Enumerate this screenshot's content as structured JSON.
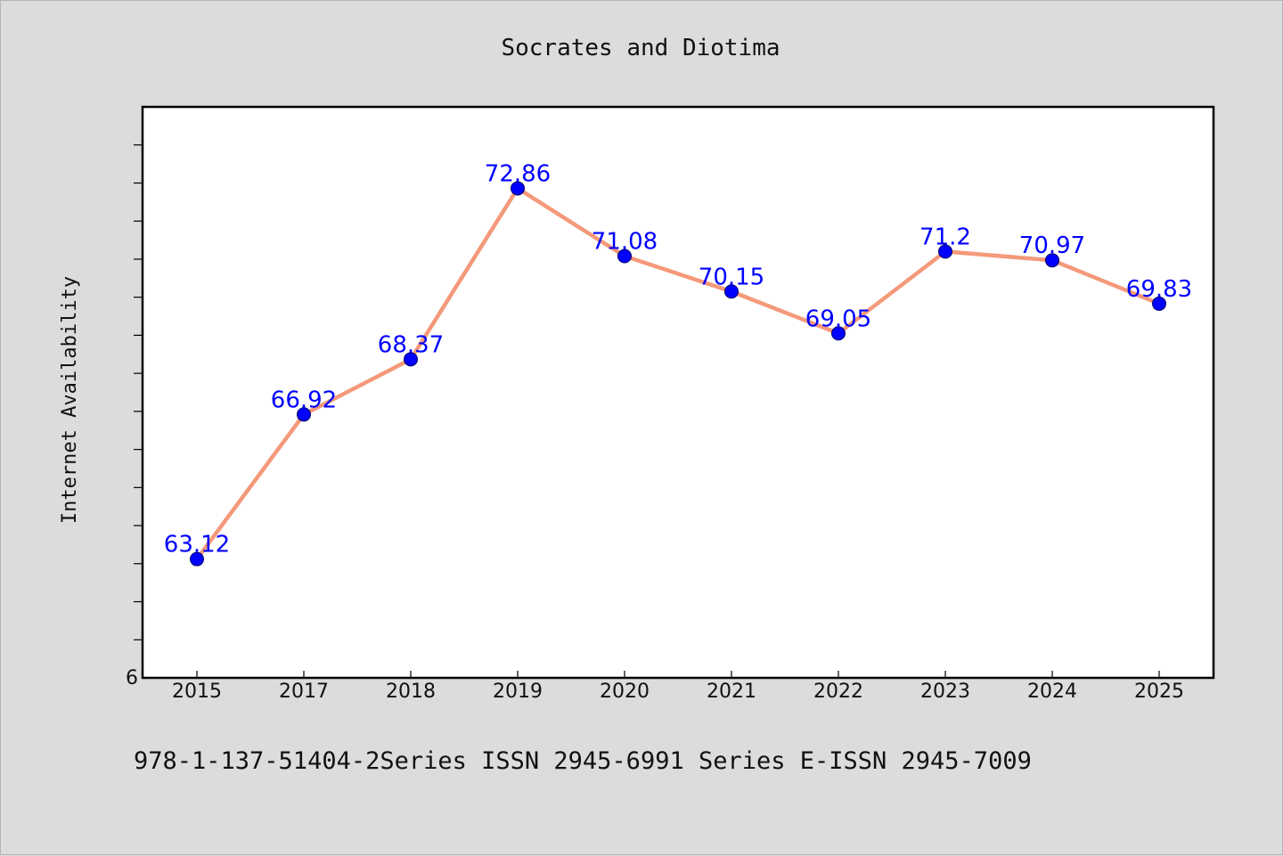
{
  "chart_data": {
    "type": "line",
    "title": "Socrates and Diotima",
    "xlabel": "",
    "ylabel": "Internet Availability",
    "categories": [
      "2015",
      "2017",
      "2018",
      "2019",
      "2020",
      "2021",
      "2022",
      "2023",
      "2024",
      "2025"
    ],
    "series": [
      {
        "values": [
          63.12,
          66.92,
          68.37,
          72.86,
          71.08,
          70.15,
          69.05,
          71.2,
          70.97,
          69.83
        ],
        "labels": [
          "63.12",
          "66.92",
          "68.37",
          "72.86",
          "71.08",
          "70.15",
          "69.05",
          "71.2",
          "70.97",
          "69.83"
        ],
        "line_color": "#f4997a",
        "marker_color": "#0000ff"
      }
    ],
    "ylim": [
      60,
      75
    ],
    "y_tick_label": "6",
    "grid": false,
    "legend": "none"
  },
  "footnote": "978-1-137-51404-2Series ISSN 2945-6991 Series E-ISSN 2945-7009",
  "colors": {
    "background": "#dcdcdc",
    "plot_background": "#ffffff",
    "line": "#f4997a",
    "marker": "#0000ff",
    "data_label": "#0000ff"
  }
}
